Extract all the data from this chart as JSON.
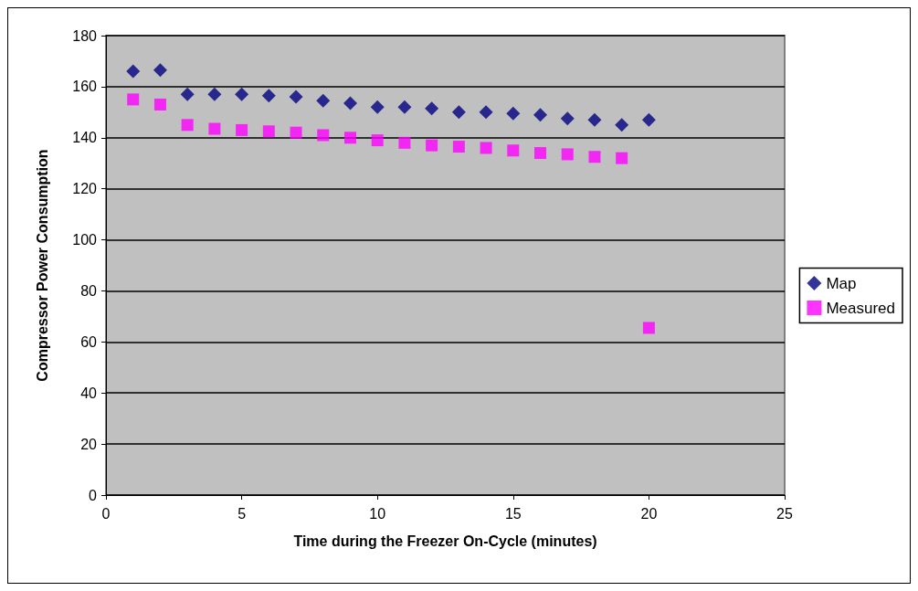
{
  "chart_data": {
    "type": "scatter",
    "xlabel": "Time during the Freezer On-Cycle (minutes)",
    "ylabel": "Compressor Power Consumption",
    "x": [
      1,
      2,
      3,
      4,
      5,
      6,
      7,
      8,
      9,
      10,
      11,
      12,
      13,
      14,
      15,
      16,
      17,
      18,
      19,
      20
    ],
    "series": [
      {
        "name": "Map",
        "color": "#000080",
        "marker": "diamond",
        "values": [
          166,
          166.5,
          157,
          157,
          157,
          156.5,
          156,
          154.5,
          153.5,
          152,
          152,
          151.5,
          150,
          150,
          149.5,
          149,
          147.5,
          147,
          145,
          147
        ]
      },
      {
        "name": "Measured",
        "color": "#ff00ff",
        "marker": "square",
        "values": [
          155,
          153,
          145,
          143.5,
          143,
          142.5,
          142,
          141,
          140,
          139,
          138,
          137,
          136.5,
          136,
          135,
          134,
          133.5,
          132.5,
          132,
          65.5
        ]
      }
    ],
    "xlim": [
      0,
      25
    ],
    "xticks": [
      0,
      5,
      10,
      15,
      20,
      25
    ],
    "ylim": [
      0,
      180
    ],
    "yticks": [
      0,
      20,
      40,
      60,
      80,
      100,
      120,
      140,
      160,
      180
    ],
    "grid": "y",
    "legend": "right"
  }
}
